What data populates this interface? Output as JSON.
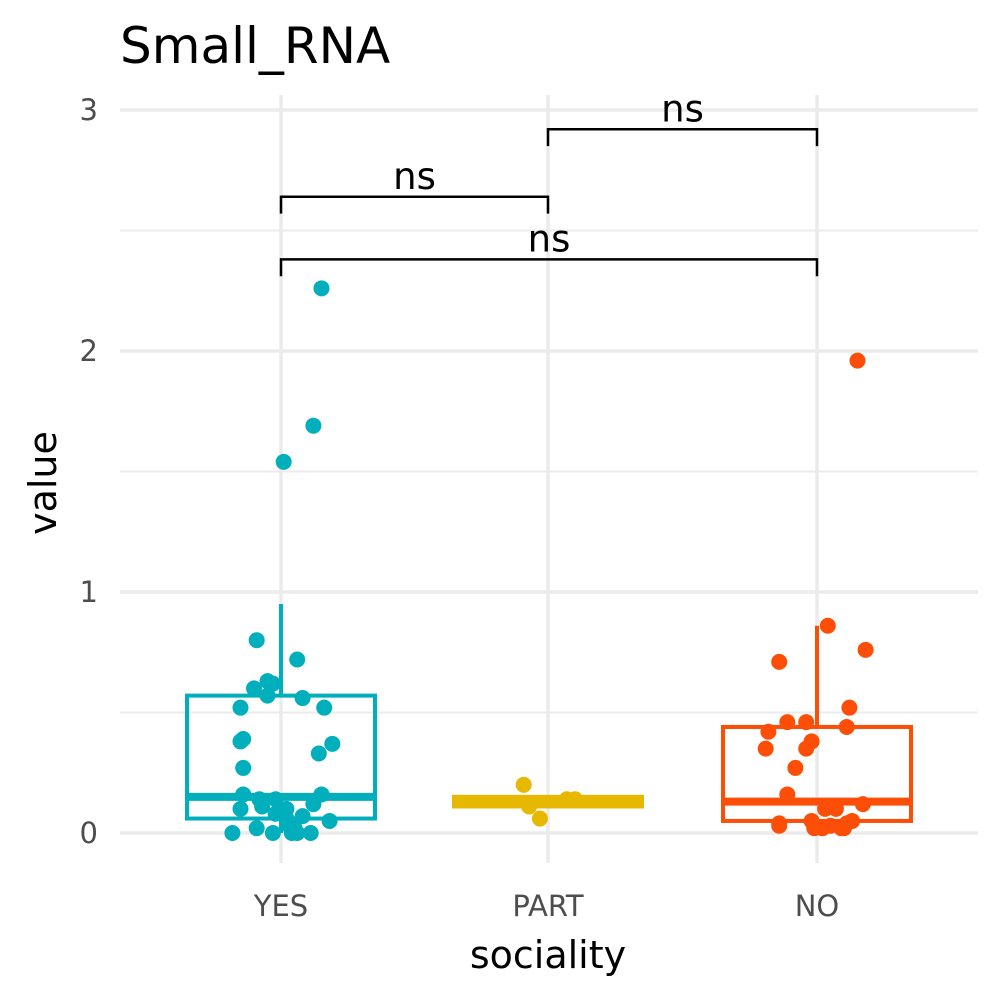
{
  "chart_data": {
    "type": "box",
    "title": "Small_RNA",
    "xlabel": "sociality",
    "ylabel": "value",
    "ylim": [
      -0.13,
      3.05
    ],
    "y_ticks": [
      0,
      1,
      2,
      3
    ],
    "y_tick_labels": [
      "0",
      "1",
      "2",
      "3"
    ],
    "categories": [
      "YES",
      "PART",
      "NO"
    ],
    "grid": true,
    "legend": "none",
    "groups": [
      {
        "category": "YES",
        "color": "#00AFBB",
        "box": {
          "lower_whisker": 0.0,
          "q1": 0.06,
          "median": 0.15,
          "q3": 0.57,
          "upper_whisker": 0.95
        },
        "points": [
          [
            -0.18,
            0.0
          ],
          [
            -0.15,
            0.38
          ],
          [
            -0.14,
            0.39
          ],
          [
            -0.15,
            0.52
          ],
          [
            -0.14,
            0.16
          ],
          [
            -0.15,
            0.1
          ],
          [
            -0.14,
            0.27
          ],
          [
            -0.1,
            0.6
          ],
          [
            -0.09,
            0.8
          ],
          [
            -0.09,
            0.02
          ],
          [
            -0.08,
            0.14
          ],
          [
            -0.07,
            0.11
          ],
          [
            -0.05,
            0.63
          ],
          [
            -0.05,
            0.57
          ],
          [
            -0.03,
            0.62
          ],
          [
            -0.03,
            0.0
          ],
          [
            -0.02,
            0.08
          ],
          [
            0.01,
            1.54
          ],
          [
            0.02,
            0.1
          ],
          [
            0.02,
            0.06
          ],
          [
            0.03,
            0.03
          ],
          [
            0.04,
            0.0
          ],
          [
            0.05,
            0.02
          ],
          [
            0.06,
            0.0
          ],
          [
            0.06,
            0.72
          ],
          [
            0.08,
            0.56
          ],
          [
            0.11,
            0.0
          ],
          [
            0.12,
            0.12
          ],
          [
            0.12,
            1.69
          ],
          [
            0.14,
            0.33
          ],
          [
            0.15,
            2.26
          ],
          [
            0.15,
            0.16
          ],
          [
            0.16,
            0.52
          ],
          [
            0.18,
            0.05
          ],
          [
            0.19,
            0.37
          ],
          [
            0.08,
            0.07
          ],
          [
            -0.02,
            0.14
          ]
        ]
      },
      {
        "category": "PART",
        "color": "#E7B800",
        "box": {
          "lower_whisker": 0.11,
          "q1": 0.11,
          "median": 0.13,
          "q3": 0.15,
          "upper_whisker": 0.15
        },
        "points": [
          [
            -0.09,
            0.2
          ],
          [
            -0.07,
            0.11
          ],
          [
            -0.03,
            0.06
          ],
          [
            0.07,
            0.14
          ],
          [
            0.1,
            0.14
          ]
        ]
      },
      {
        "category": "NO",
        "color": "#FC4E07",
        "box": {
          "lower_whisker": 0.0,
          "q1": 0.05,
          "median": 0.13,
          "q3": 0.44,
          "upper_whisker": 0.86
        },
        "points": [
          [
            -0.19,
            0.35
          ],
          [
            -0.18,
            0.42
          ],
          [
            -0.14,
            0.71
          ],
          [
            -0.14,
            0.04
          ],
          [
            -0.14,
            0.03
          ],
          [
            -0.11,
            0.46
          ],
          [
            -0.11,
            0.16
          ],
          [
            -0.08,
            0.27
          ],
          [
            -0.04,
            0.35
          ],
          [
            -0.04,
            0.46
          ],
          [
            -0.02,
            0.38
          ],
          [
            -0.02,
            0.05
          ],
          [
            -0.01,
            0.02
          ],
          [
            0.02,
            0.02
          ],
          [
            0.03,
            0.1
          ],
          [
            0.04,
            0.86
          ],
          [
            0.05,
            0.03
          ],
          [
            0.07,
            0.1
          ],
          [
            0.09,
            0.02
          ],
          [
            0.1,
            0.02
          ],
          [
            0.11,
            0.44
          ],
          [
            0.12,
            0.52
          ],
          [
            0.13,
            0.05
          ],
          [
            0.15,
            1.96
          ],
          [
            0.17,
            0.12
          ],
          [
            0.18,
            0.76
          ],
          [
            0.11,
            0.04
          ]
        ]
      }
    ],
    "comparisons": [
      {
        "from": "YES",
        "to": "PART",
        "label": "ns",
        "y": 2.64,
        "tip": 0.07
      },
      {
        "from": "PART",
        "to": "NO",
        "label": "ns",
        "y": 2.92,
        "tip": 0.07
      },
      {
        "from": "YES",
        "to": "NO",
        "label": "ns",
        "y": 2.38,
        "tip": 0.07
      }
    ]
  }
}
